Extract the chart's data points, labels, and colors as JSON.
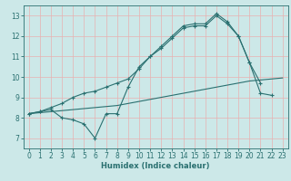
{
  "title": "",
  "xlabel": "Humidex (Indice chaleur)",
  "bg_color": "#cce8e8",
  "line_color": "#2a7070",
  "grid_color": "#e8b0b0",
  "xlim": [
    -0.5,
    23.5
  ],
  "ylim": [
    6.5,
    13.5
  ],
  "xticks": [
    0,
    1,
    2,
    3,
    4,
    5,
    6,
    7,
    8,
    9,
    10,
    11,
    12,
    13,
    14,
    15,
    16,
    17,
    18,
    19,
    20,
    21,
    22,
    23
  ],
  "yticks": [
    7,
    8,
    9,
    10,
    11,
    12,
    13
  ],
  "line1_x": [
    0,
    1,
    2,
    3,
    4,
    5,
    6,
    7,
    8,
    9,
    10,
    11,
    12,
    13,
    14,
    15,
    16,
    17,
    18,
    19,
    20,
    21
  ],
  "line1_y": [
    8.2,
    8.3,
    8.4,
    8.0,
    7.9,
    7.7,
    7.0,
    8.2,
    8.2,
    9.5,
    10.5,
    11.0,
    11.5,
    12.0,
    12.5,
    12.6,
    12.6,
    13.1,
    12.7,
    12.0,
    10.7,
    9.7
  ],
  "line2_x": [
    0,
    1,
    2,
    3,
    4,
    5,
    6,
    7,
    8,
    9,
    10,
    11,
    12,
    13,
    14,
    15,
    16,
    17,
    18,
    19,
    20,
    21,
    22,
    23
  ],
  "line2_y": [
    8.2,
    8.25,
    8.3,
    8.35,
    8.4,
    8.45,
    8.5,
    8.55,
    8.6,
    8.7,
    8.8,
    8.9,
    9.0,
    9.1,
    9.2,
    9.3,
    9.4,
    9.5,
    9.6,
    9.7,
    9.8,
    9.85,
    9.9,
    9.95
  ],
  "line3_x": [
    0,
    1,
    2,
    3,
    4,
    5,
    6,
    7,
    8,
    9,
    10,
    11,
    12,
    13,
    14,
    15,
    16,
    17,
    18,
    19,
    20,
    21,
    22
  ],
  "line3_y": [
    8.2,
    8.3,
    8.5,
    8.7,
    9.0,
    9.2,
    9.3,
    9.5,
    9.7,
    9.9,
    10.4,
    11.0,
    11.4,
    11.9,
    12.4,
    12.5,
    12.5,
    13.0,
    12.6,
    12.0,
    10.7,
    9.2,
    9.1
  ]
}
